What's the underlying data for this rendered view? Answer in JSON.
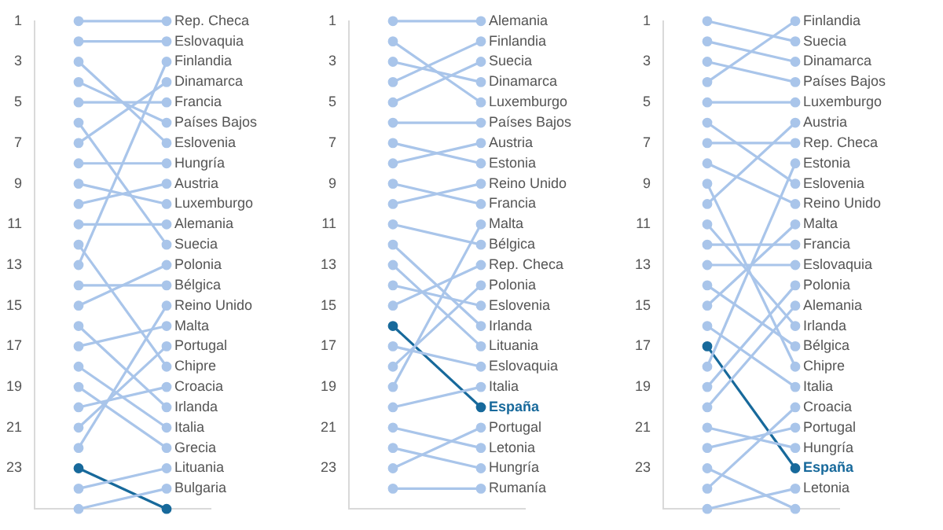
{
  "chart_data": [
    {
      "type": "line",
      "categories": [
        null,
        null
      ],
      "grid": false,
      "marker": "circle",
      "tick_labels": "y",
      "ylim": [
        25,
        1
      ],
      "yticks": [
        1,
        3,
        5,
        7,
        9,
        11,
        13,
        15,
        17,
        19,
        21,
        23
      ],
      "series": [
        {
          "name": "Rep. Checa",
          "color": "#a9c5ea",
          "values": [
            1,
            1
          ]
        },
        {
          "name": "Eslovaquia",
          "color": "#a9c5ea",
          "values": [
            2,
            2
          ]
        },
        {
          "name": "Eslovenia",
          "color": "#a9c5ea",
          "values": [
            3,
            7
          ]
        },
        {
          "name": "Países Bajos",
          "color": "#a9c5ea",
          "values": [
            4,
            6
          ]
        },
        {
          "name": "Francia",
          "color": "#a9c5ea",
          "values": [
            5,
            5
          ]
        },
        {
          "name": "Suecia",
          "color": "#a9c5ea",
          "values": [
            6,
            12
          ]
        },
        {
          "name": "Dinamarca",
          "color": "#a9c5ea",
          "values": [
            7,
            4
          ]
        },
        {
          "name": "Hungría",
          "color": "#a9c5ea",
          "values": [
            8,
            8
          ]
        },
        {
          "name": "Luxemburgo",
          "color": "#a9c5ea",
          "values": [
            9,
            10
          ]
        },
        {
          "name": "Austria",
          "color": "#a9c5ea",
          "values": [
            10,
            9
          ]
        },
        {
          "name": "Alemania",
          "color": "#a9c5ea",
          "values": [
            11,
            11
          ]
        },
        {
          "name": "Chipre",
          "color": "#a9c5ea",
          "values": [
            12,
            18
          ]
        },
        {
          "name": "Finlandia",
          "color": "#a9c5ea",
          "values": [
            13,
            3
          ]
        },
        {
          "name": "Bélgica",
          "color": "#a9c5ea",
          "values": [
            14,
            14
          ]
        },
        {
          "name": "Polonia",
          "color": "#a9c5ea",
          "values": [
            15,
            13
          ]
        },
        {
          "name": "Irlanda",
          "color": "#a9c5ea",
          "values": [
            16,
            20
          ]
        },
        {
          "name": "Malta",
          "color": "#a9c5ea",
          "values": [
            17,
            16
          ]
        },
        {
          "name": "Italia",
          "color": "#a9c5ea",
          "values": [
            18,
            21
          ]
        },
        {
          "name": "Grecia",
          "color": "#a9c5ea",
          "values": [
            19,
            22
          ]
        },
        {
          "name": "Croacia",
          "color": "#a9c5ea",
          "values": [
            20,
            19
          ]
        },
        {
          "name": "Portugal",
          "color": "#a9c5ea",
          "values": [
            21,
            17
          ]
        },
        {
          "name": "Reino Unido",
          "color": "#a9c5ea",
          "values": [
            22,
            15
          ]
        },
        {
          "name": "Lituania",
          "color": "#a9c5ea",
          "values": [
            24,
            23
          ]
        },
        {
          "name": "Bulgaria",
          "color": "#a9c5ea",
          "values": [
            25,
            24
          ]
        },
        {
          "color": "#17699b",
          "values": [
            23,
            25
          ]
        }
      ]
    },
    {
      "type": "line",
      "categories": [
        null,
        null
      ],
      "grid": false,
      "marker": "circle",
      "tick_labels": "y",
      "ylim": [
        25,
        1
      ],
      "yticks": [
        1,
        3,
        5,
        7,
        9,
        11,
        13,
        15,
        17,
        19,
        21,
        23
      ],
      "series": [
        {
          "name": "Alemania",
          "color": "#a9c5ea",
          "values": [
            1,
            1
          ]
        },
        {
          "name": "Luxemburgo",
          "color": "#a9c5ea",
          "values": [
            2,
            5
          ]
        },
        {
          "name": "Dinamarca",
          "color": "#a9c5ea",
          "values": [
            3,
            4
          ]
        },
        {
          "name": "Finlandia",
          "color": "#a9c5ea",
          "values": [
            4,
            2
          ]
        },
        {
          "name": "Suecia",
          "color": "#a9c5ea",
          "values": [
            5,
            3
          ]
        },
        {
          "name": "Países Bajos",
          "color": "#a9c5ea",
          "values": [
            6,
            6
          ]
        },
        {
          "name": "Estonia",
          "color": "#a9c5ea",
          "values": [
            7,
            8
          ]
        },
        {
          "name": "Austria",
          "color": "#a9c5ea",
          "values": [
            8,
            7
          ]
        },
        {
          "name": "Francia",
          "color": "#a9c5ea",
          "values": [
            9,
            10
          ]
        },
        {
          "name": "Reino Unido",
          "color": "#a9c5ea",
          "values": [
            10,
            9
          ]
        },
        {
          "name": "Bélgica",
          "color": "#a9c5ea",
          "values": [
            11,
            12
          ]
        },
        {
          "name": "Irlanda",
          "color": "#a9c5ea",
          "values": [
            12,
            16
          ]
        },
        {
          "name": "Lituania",
          "color": "#a9c5ea",
          "values": [
            13,
            17
          ]
        },
        {
          "name": "Eslovenia",
          "color": "#a9c5ea",
          "values": [
            14,
            15
          ]
        },
        {
          "name": "Rep. Checa",
          "color": "#a9c5ea",
          "values": [
            15,
            13
          ]
        },
        {
          "name": "Eslovaquia",
          "color": "#a9c5ea",
          "values": [
            17,
            18
          ]
        },
        {
          "name": "Polonia",
          "color": "#a9c5ea",
          "values": [
            18,
            14
          ]
        },
        {
          "name": "Malta",
          "color": "#a9c5ea",
          "values": [
            19,
            11
          ]
        },
        {
          "name": "Italia",
          "color": "#a9c5ea",
          "values": [
            20,
            19
          ]
        },
        {
          "name": "Letonia",
          "color": "#a9c5ea",
          "values": [
            21,
            22
          ]
        },
        {
          "name": "Hungría",
          "color": "#a9c5ea",
          "values": [
            22,
            23
          ]
        },
        {
          "name": "Portugal",
          "color": "#a9c5ea",
          "values": [
            23,
            21
          ]
        },
        {
          "name": "Rumanía",
          "color": "#a9c5ea",
          "values": [
            24,
            24
          ]
        },
        {
          "name": "España",
          "color": "#17699b",
          "values": [
            16,
            20
          ]
        }
      ]
    },
    {
      "type": "line",
      "categories": [
        null,
        null
      ],
      "grid": false,
      "marker": "circle",
      "tick_labels": "y",
      "ylim": [
        25,
        1
      ],
      "yticks": [
        1,
        3,
        5,
        7,
        9,
        11,
        13,
        15,
        17,
        19,
        21,
        23
      ],
      "series": [
        {
          "name": "Suecia",
          "color": "#a9c5ea",
          "values": [
            1,
            2
          ]
        },
        {
          "name": "Dinamarca",
          "color": "#a9c5ea",
          "values": [
            2,
            3
          ]
        },
        {
          "name": "Países Bajos",
          "color": "#a9c5ea",
          "values": [
            3,
            4
          ]
        },
        {
          "name": "Finlandia",
          "color": "#a9c5ea",
          "values": [
            4,
            1
          ]
        },
        {
          "name": "Luxemburgo",
          "color": "#a9c5ea",
          "values": [
            5,
            5
          ]
        },
        {
          "name": "Eslovenia",
          "color": "#a9c5ea",
          "values": [
            6,
            9
          ]
        },
        {
          "name": "Rep. Checa",
          "color": "#a9c5ea",
          "values": [
            7,
            7
          ]
        },
        {
          "name": "Reino Unido",
          "color": "#a9c5ea",
          "values": [
            8,
            10
          ]
        },
        {
          "name": "Chipre",
          "color": "#a9c5ea",
          "values": [
            9,
            18
          ]
        },
        {
          "name": "Austria",
          "color": "#a9c5ea",
          "values": [
            10,
            6
          ]
        },
        {
          "name": "Irlanda",
          "color": "#a9c5ea",
          "values": [
            11,
            16
          ]
        },
        {
          "name": "Francia",
          "color": "#a9c5ea",
          "values": [
            12,
            12
          ]
        },
        {
          "name": "Eslovaquia",
          "color": "#a9c5ea",
          "values": [
            13,
            13
          ]
        },
        {
          "name": "Bélgica",
          "color": "#a9c5ea",
          "values": [
            14,
            17
          ]
        },
        {
          "name": "Malta",
          "color": "#a9c5ea",
          "values": [
            15,
            11
          ]
        },
        {
          "name": "Italia",
          "color": "#a9c5ea",
          "values": [
            16,
            19
          ]
        },
        {
          "name": "Estonia",
          "color": "#a9c5ea",
          "values": [
            18,
            8
          ]
        },
        {
          "name": "Polonia",
          "color": "#a9c5ea",
          "values": [
            19,
            14
          ]
        },
        {
          "name": "Alemania",
          "color": "#a9c5ea",
          "values": [
            20,
            15
          ]
        },
        {
          "name": "Hungría",
          "color": "#a9c5ea",
          "values": [
            21,
            22
          ]
        },
        {
          "name": "Portugal",
          "color": "#a9c5ea",
          "values": [
            22,
            21
          ]
        },
        {
          "color": "#a9c5ea",
          "values": [
            23,
            25
          ]
        },
        {
          "name": "Croacia",
          "color": "#a9c5ea",
          "values": [
            24,
            20
          ]
        },
        {
          "name": "Letonia",
          "color": "#a9c5ea",
          "values": [
            25,
            24
          ]
        },
        {
          "name": "España",
          "color": "#17699b",
          "values": [
            17,
            23
          ]
        }
      ]
    }
  ]
}
